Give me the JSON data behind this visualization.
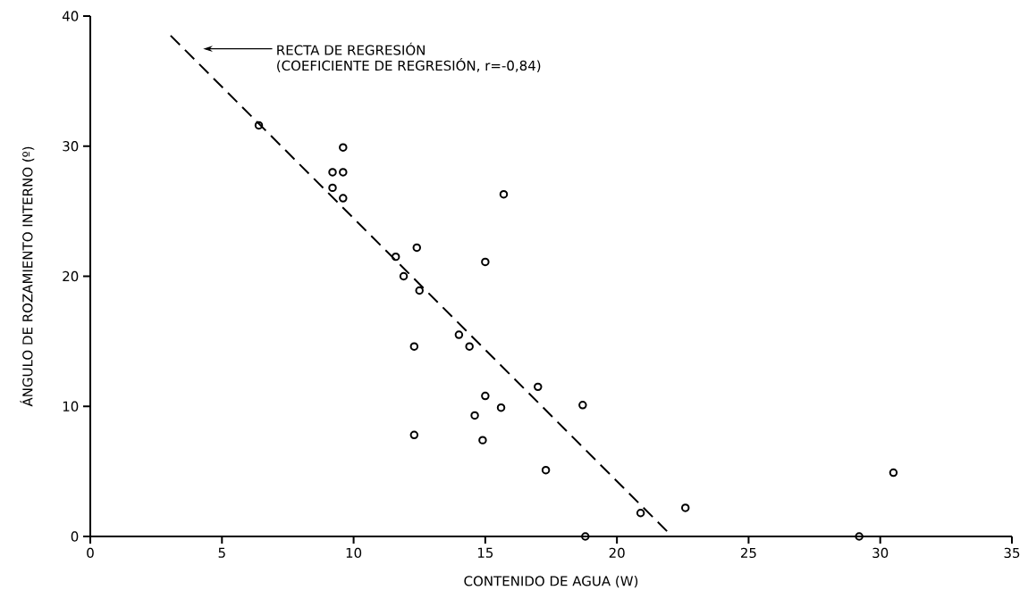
{
  "chart_data": {
    "type": "scatter",
    "xlabel": "CONTENIDO DE AGUA (W)",
    "ylabel": "ÁNGULO DE ROZAMIENTO INTERNO (º)",
    "xlim": [
      0,
      35
    ],
    "ylim": [
      0,
      40
    ],
    "xticks": [
      0,
      5,
      10,
      15,
      20,
      25,
      30,
      35
    ],
    "yticks": [
      0,
      10,
      20,
      30,
      40
    ],
    "grid": false,
    "annotations": [
      "RECTA DE REGRESIÓN",
      "(COEFICIENTE DE REGRESIÓN, r=-0,84)"
    ],
    "series": [
      {
        "type": "scatter",
        "color": "#000000",
        "marker": "circle",
        "x": [
          6.4,
          9.2,
          9.6,
          9.6,
          9.2,
          9.6,
          11.6,
          12.4,
          11.9,
          12.5,
          15.0,
          15.7,
          12.3,
          14.0,
          14.4,
          15.0,
          14.6,
          15.6,
          14.9,
          12.3,
          17.0,
          18.7,
          17.3,
          18.8,
          20.9,
          22.6,
          29.2,
          30.5
        ],
        "values": [
          31.6,
          28.0,
          28.0,
          29.9,
          26.8,
          26.0,
          21.5,
          22.2,
          20.0,
          18.9,
          21.1,
          26.3,
          14.6,
          15.5,
          14.6,
          10.8,
          9.3,
          9.9,
          7.4,
          7.8,
          11.5,
          10.1,
          5.1,
          0,
          1.8,
          2.2,
          0,
          4.9
        ]
      },
      {
        "type": "line",
        "color": "#000000",
        "line_style": "dashed",
        "marker": "none",
        "x": [
          3.05,
          22.1
        ],
        "values": [
          38.5,
          0
        ]
      }
    ]
  }
}
